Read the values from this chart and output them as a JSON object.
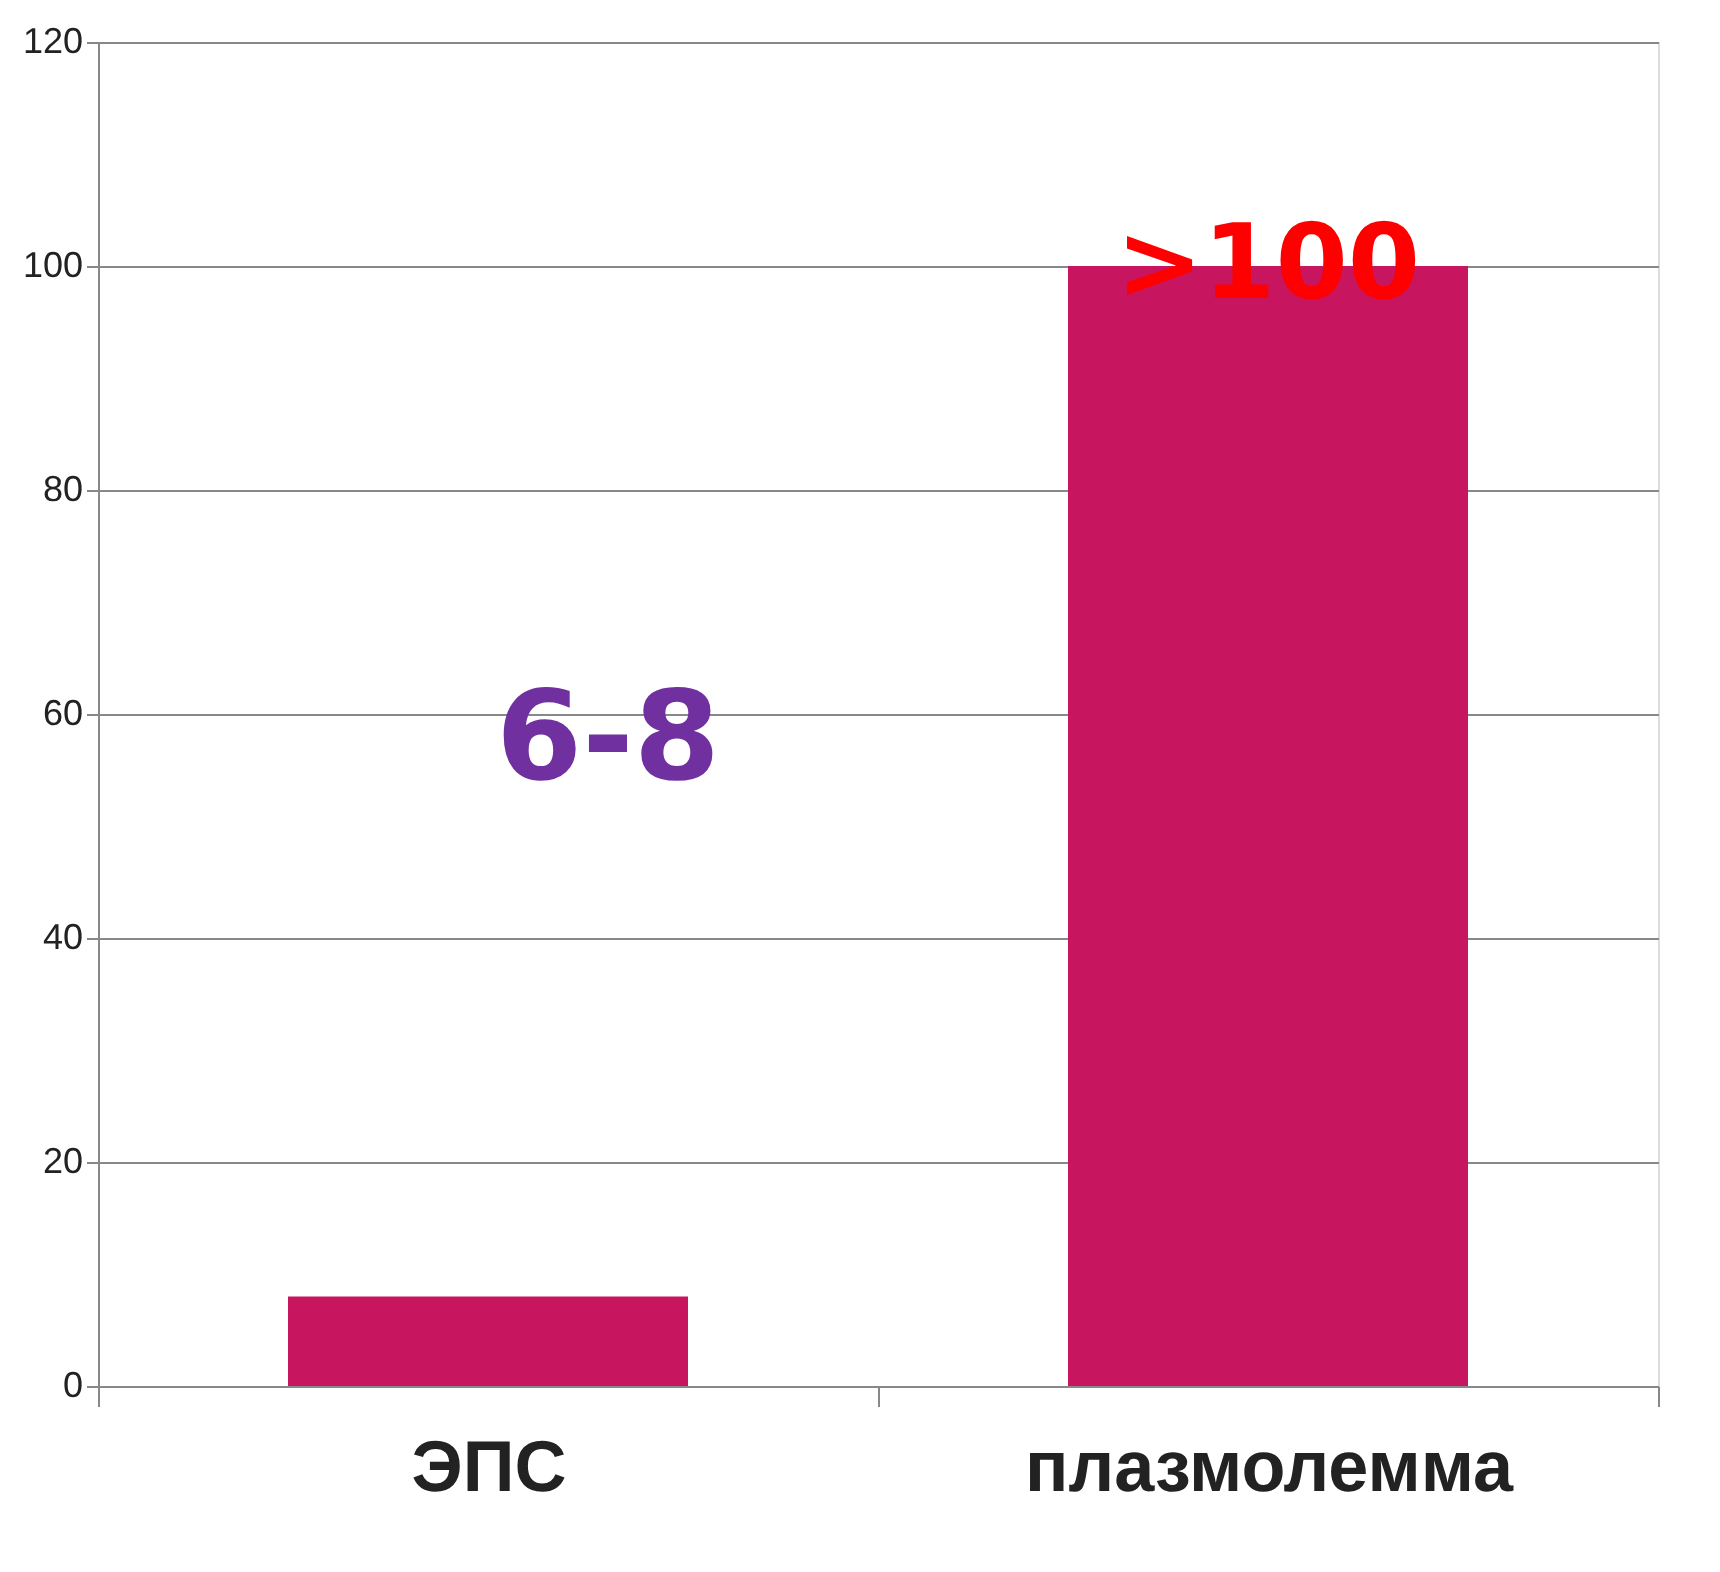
{
  "chart_data": {
    "type": "bar",
    "categories": [
      "ЭПС",
      "плазмолемма"
    ],
    "values": [
      8,
      100
    ],
    "color": "#c8155f",
    "ylim": [
      0,
      120
    ],
    "yticks": [
      0,
      20,
      40,
      60,
      80,
      100,
      120
    ],
    "grid": "y",
    "annotations": [
      "6-8",
      {
        "text": ">100",
        "x": "плазмолемма",
        "y": 100
      }
    ]
  }
}
